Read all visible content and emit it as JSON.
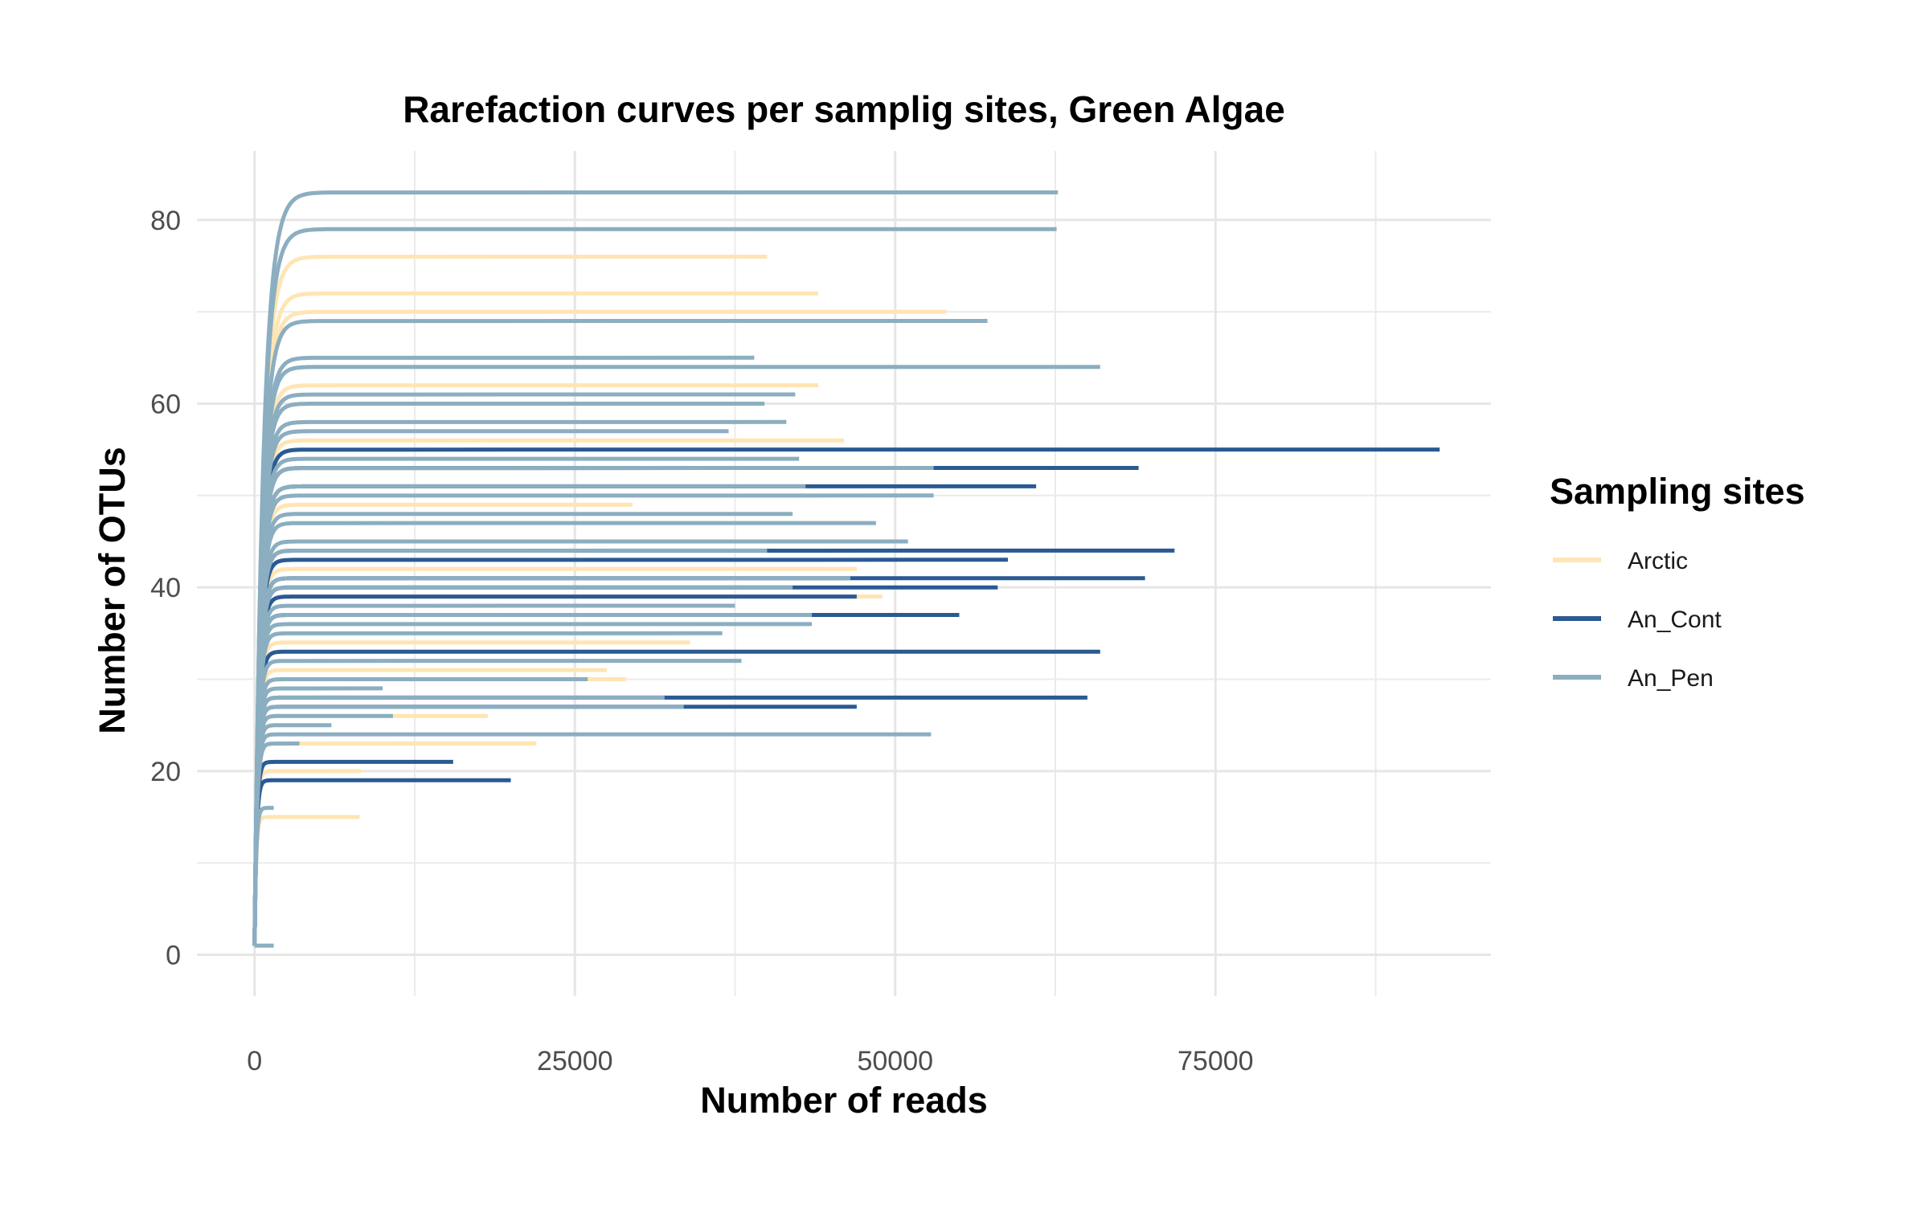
{
  "chart_data": {
    "type": "line",
    "title": "Rarefaction curves per samplig sites, Green Algae",
    "xlabel": "Number of reads",
    "ylabel": "Number of OTUs",
    "xlim": [
      -4500,
      96500
    ],
    "ylim": [
      -4.5,
      87.5
    ],
    "x_ticks": [
      0,
      25000,
      50000,
      75000
    ],
    "x_tick_labels": [
      "0",
      "25000",
      "50000",
      "75000"
    ],
    "y_ticks": [
      0,
      20,
      40,
      60,
      80
    ],
    "y_tick_labels": [
      "0",
      "20",
      "40",
      "60",
      "80"
    ],
    "grid": true,
    "legend": {
      "title": "Sampling sites",
      "position": "right",
      "entries": [
        {
          "name": "Arctic",
          "color": "#FFE5B4"
        },
        {
          "name": "An_Cont",
          "color": "#2A5A93"
        },
        {
          "name": "An_Pen",
          "color": "#8BAEC0"
        }
      ]
    },
    "series": [
      {
        "name": "Arctic",
        "color": "#FFE5B4",
        "curves": [
          {
            "max_reads": 40000,
            "otus": 76
          },
          {
            "max_reads": 44000,
            "otus": 72
          },
          {
            "max_reads": 54000,
            "otus": 70
          },
          {
            "max_reads": 44000,
            "otus": 62
          },
          {
            "max_reads": 46000,
            "otus": 56
          },
          {
            "max_reads": 29500,
            "otus": 49
          },
          {
            "max_reads": 47000,
            "otus": 42
          },
          {
            "max_reads": 49000,
            "otus": 39
          },
          {
            "max_reads": 34000,
            "otus": 34
          },
          {
            "max_reads": 27500,
            "otus": 31
          },
          {
            "max_reads": 29000,
            "otus": 30
          },
          {
            "max_reads": 18200,
            "otus": 26
          },
          {
            "max_reads": 22000,
            "otus": 23
          },
          {
            "max_reads": 8300,
            "otus": 20
          },
          {
            "max_reads": 8200,
            "otus": 15
          }
        ]
      },
      {
        "name": "An_Cont",
        "color": "#2A5A93",
        "curves": [
          {
            "max_reads": 92500,
            "otus": 55
          },
          {
            "max_reads": 69000,
            "otus": 53
          },
          {
            "max_reads": 61000,
            "otus": 51
          },
          {
            "max_reads": 71800,
            "otus": 44
          },
          {
            "max_reads": 58800,
            "otus": 43
          },
          {
            "max_reads": 69500,
            "otus": 41
          },
          {
            "max_reads": 58000,
            "otus": 40
          },
          {
            "max_reads": 47000,
            "otus": 39
          },
          {
            "max_reads": 55000,
            "otus": 37
          },
          {
            "max_reads": 66000,
            "otus": 33
          },
          {
            "max_reads": 65000,
            "otus": 28
          },
          {
            "max_reads": 47000,
            "otus": 27
          },
          {
            "max_reads": 15500,
            "otus": 21
          },
          {
            "max_reads": 20000,
            "otus": 19
          }
        ]
      },
      {
        "name": "An_Pen",
        "color": "#8BAEC0",
        "curves": [
          {
            "max_reads": 62700,
            "otus": 83
          },
          {
            "max_reads": 62600,
            "otus": 79
          },
          {
            "max_reads": 57200,
            "otus": 69
          },
          {
            "max_reads": 39000,
            "otus": 65
          },
          {
            "max_reads": 66000,
            "otus": 64
          },
          {
            "max_reads": 42200,
            "otus": 61
          },
          {
            "max_reads": 39800,
            "otus": 60
          },
          {
            "max_reads": 41500,
            "otus": 58
          },
          {
            "max_reads": 37000,
            "otus": 57
          },
          {
            "max_reads": 42500,
            "otus": 54
          },
          {
            "max_reads": 53000,
            "otus": 53
          },
          {
            "max_reads": 43000,
            "otus": 51
          },
          {
            "max_reads": 53000,
            "otus": 50
          },
          {
            "max_reads": 42000,
            "otus": 48
          },
          {
            "max_reads": 48500,
            "otus": 47
          },
          {
            "max_reads": 51000,
            "otus": 45
          },
          {
            "max_reads": 40000,
            "otus": 44
          },
          {
            "max_reads": 46500,
            "otus": 41
          },
          {
            "max_reads": 42000,
            "otus": 40
          },
          {
            "max_reads": 37500,
            "otus": 38
          },
          {
            "max_reads": 43500,
            "otus": 37
          },
          {
            "max_reads": 43500,
            "otus": 36
          },
          {
            "max_reads": 36500,
            "otus": 35
          },
          {
            "max_reads": 38000,
            "otus": 32
          },
          {
            "max_reads": 26000,
            "otus": 30
          },
          {
            "max_reads": 10000,
            "otus": 29
          },
          {
            "max_reads": 32000,
            "otus": 28
          },
          {
            "max_reads": 33500,
            "otus": 27
          },
          {
            "max_reads": 10800,
            "otus": 26
          },
          {
            "max_reads": 6000,
            "otus": 25
          },
          {
            "max_reads": 52800,
            "otus": 24
          },
          {
            "max_reads": 3500,
            "otus": 23
          },
          {
            "max_reads": 1500,
            "otus": 16
          },
          {
            "max_reads": 1500,
            "otus": 1
          }
        ]
      }
    ]
  }
}
